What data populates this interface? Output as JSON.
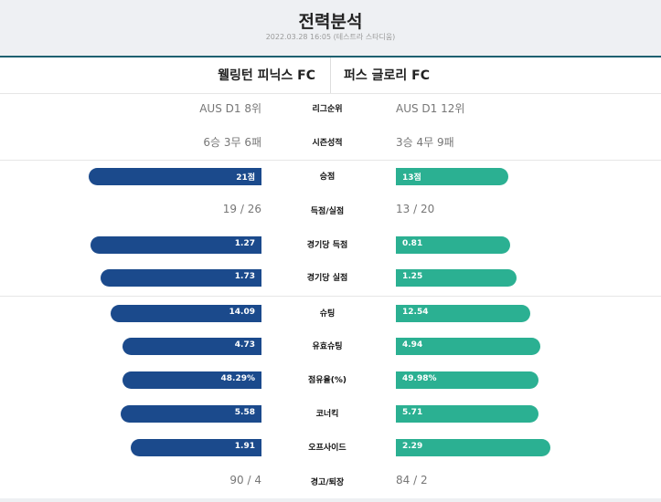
{
  "header": {
    "title": "전력분석",
    "subtitle": "2022.03.28 16:05 (테스트라 스타디움)"
  },
  "teams": {
    "home": "웰링턴 피닉스 FC",
    "away": "퍼스 글로리 FC"
  },
  "stats": {
    "league_rank": {
      "label": "리그순위",
      "home": "AUS D1 8위",
      "away": "AUS D1 12위"
    },
    "season_record": {
      "label": "시즌성적",
      "home": "6승 3무 6패",
      "away": "3승 4무 9패"
    },
    "points": {
      "label": "승점",
      "home": "21점",
      "away": "13점",
      "home_bar": 0.86,
      "away_bar": 0.56
    },
    "goals": {
      "label": "득점/실점",
      "home": "19 / 26",
      "away": "13 / 20"
    },
    "goals_per_game": {
      "label": "경기당 득점",
      "home": "1.27",
      "away": "0.81",
      "home_bar": 0.85,
      "away_bar": 0.57
    },
    "conceded_per_game": {
      "label": "경기당 실점",
      "home": "1.73",
      "away": "1.25",
      "home_bar": 0.8,
      "away_bar": 0.6
    },
    "shots": {
      "label": "슈팅",
      "home": "14.09",
      "away": "12.54",
      "home_bar": 0.75,
      "away_bar": 0.67
    },
    "shots_on_target": {
      "label": "유효슈팅",
      "home": "4.73",
      "away": "4.94",
      "home_bar": 0.69,
      "away_bar": 0.72
    },
    "possession": {
      "label": "점유율(%)",
      "home": "48.29%",
      "away": "49.98%",
      "home_bar": 0.69,
      "away_bar": 0.71
    },
    "corners": {
      "label": "코너킥",
      "home": "5.58",
      "away": "5.71",
      "home_bar": 0.7,
      "away_bar": 0.71
    },
    "offsides": {
      "label": "오프사이드",
      "home": "1.91",
      "away": "2.29",
      "home_bar": 0.65,
      "away_bar": 0.77
    },
    "cards": {
      "label": "경고/퇴장",
      "home": "90 / 4",
      "away": "84 / 2"
    }
  },
  "colors": {
    "home_bar": "#1b4a8c",
    "away_bar": "#2bb092",
    "accent_line": "#1e6070"
  }
}
